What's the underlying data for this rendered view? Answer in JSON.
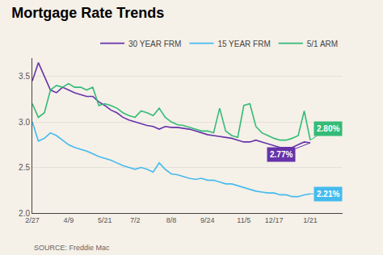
{
  "chart_data": {
    "type": "line",
    "title": "Mortgage Rate Trends",
    "categories": [
      "2/27",
      null,
      null,
      null,
      null,
      null,
      "4/9",
      null,
      null,
      null,
      null,
      null,
      "5/21",
      null,
      null,
      null,
      null,
      "7/2",
      null,
      null,
      null,
      null,
      null,
      "8/8",
      null,
      null,
      null,
      null,
      null,
      "9/24",
      null,
      null,
      null,
      null,
      null,
      "11/5",
      null,
      null,
      null,
      null,
      "12/17",
      null,
      null,
      null,
      null,
      null,
      "1/21"
    ],
    "series": [
      {
        "name": "30 YEAR FRM",
        "color": "#6633aa",
        "values": [
          3.45,
          3.65,
          3.5,
          3.35,
          3.32,
          3.38,
          3.35,
          3.32,
          3.3,
          3.28,
          3.28,
          3.22,
          3.18,
          3.13,
          3.1,
          3.05,
          3.02,
          3.0,
          2.98,
          2.96,
          2.95,
          2.92,
          2.95,
          2.94,
          2.94,
          2.93,
          2.92,
          2.9,
          2.88,
          2.86,
          2.85,
          2.84,
          2.83,
          2.82,
          2.8,
          2.78,
          2.78,
          2.8,
          2.78,
          2.76,
          2.74,
          2.72,
          2.72,
          2.72,
          2.75,
          2.78,
          2.77
        ]
      },
      {
        "name": "15 YEAR FRM",
        "color": "#44bbee",
        "values": [
          3.0,
          2.79,
          2.82,
          2.88,
          2.85,
          2.8,
          2.75,
          2.72,
          2.7,
          2.68,
          2.65,
          2.62,
          2.6,
          2.58,
          2.55,
          2.52,
          2.5,
          2.48,
          2.5,
          2.48,
          2.45,
          2.55,
          2.48,
          2.43,
          2.42,
          2.4,
          2.38,
          2.37,
          2.38,
          2.36,
          2.36,
          2.34,
          2.32,
          2.32,
          2.3,
          2.28,
          2.26,
          2.24,
          2.23,
          2.22,
          2.22,
          2.2,
          2.2,
          2.18,
          2.18,
          2.2,
          2.21
        ]
      },
      {
        "name": "5/1 ARM",
        "color": "#33bb77",
        "values": [
          3.2,
          3.05,
          3.1,
          3.35,
          3.4,
          3.38,
          3.42,
          3.38,
          3.38,
          3.35,
          3.38,
          3.18,
          3.2,
          3.18,
          3.15,
          3.1,
          3.07,
          3.05,
          3.12,
          3.1,
          3.07,
          3.15,
          3.05,
          3.0,
          2.97,
          2.96,
          2.94,
          2.92,
          2.9,
          2.9,
          2.88,
          3.15,
          2.9,
          2.85,
          2.83,
          3.18,
          3.2,
          2.95,
          2.88,
          2.85,
          2.82,
          2.8,
          2.8,
          2.82,
          2.85,
          3.12,
          2.8
        ]
      }
    ],
    "ylim": [
      2.0,
      3.7
    ],
    "yticks": [
      {
        "value": 2.0,
        "label": "2.0"
      },
      2.5,
      {
        "value": 3.0,
        "label": "3.0"
      },
      3.5
    ],
    "grid": "y",
    "legend": "top",
    "annotations": [
      {
        "text": "2.80%",
        "x": "1/21",
        "y": 2.8,
        "color": "#33bb77"
      },
      {
        "text": "2.77%",
        "x": "1/21",
        "y": 2.77,
        "color": "#6633aa"
      },
      {
        "text": "2.21%",
        "x": "1/21",
        "y": 2.21,
        "color": "#44bbee"
      },
      {
        "text": "SOURCE: Freddie Mac"
      }
    ]
  }
}
